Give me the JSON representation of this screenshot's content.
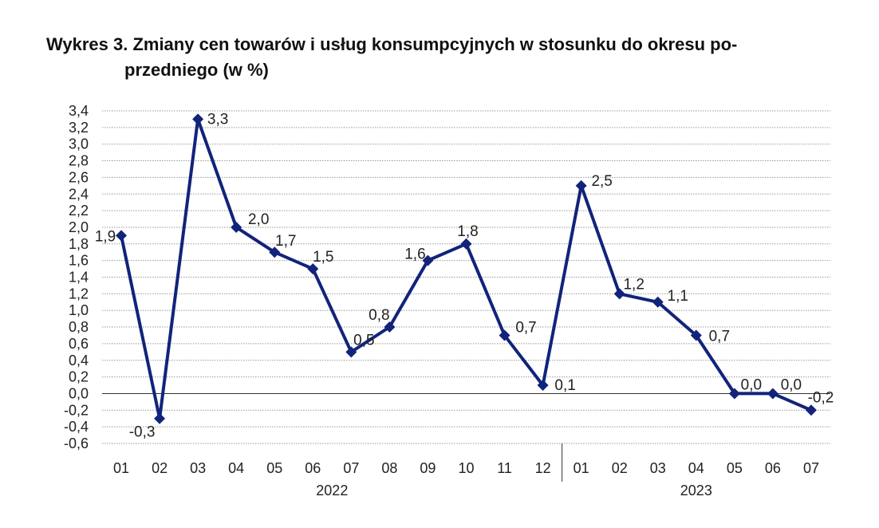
{
  "title": {
    "line1": "Wykres 3. Zmiany cen towarów i usług konsumpcyjnych w stosunku do okresu po-",
    "line2": "przedniego (w %)"
  },
  "chart_data": {
    "type": "line",
    "title": "Wykres 3. Zmiany cen towarów i usług konsumpcyjnych w stosunku do okresu poprzedniego (w %)",
    "categories": [
      "01",
      "02",
      "03",
      "04",
      "05",
      "06",
      "07",
      "08",
      "09",
      "10",
      "11",
      "12",
      "01",
      "02",
      "03",
      "04",
      "05",
      "06",
      "07"
    ],
    "year_groups": [
      {
        "label": "2022",
        "count": 12
      },
      {
        "label": "2023",
        "count": 7
      }
    ],
    "series": [
      {
        "values": [
          1.9,
          -0.3,
          3.3,
          2.0,
          1.7,
          1.5,
          0.5,
          0.8,
          1.6,
          1.8,
          0.7,
          0.1,
          2.5,
          1.2,
          1.1,
          0.7,
          0.0,
          0.0,
          -0.2
        ]
      }
    ],
    "data_labels": [
      "1,9",
      "-0,3",
      "3,3",
      "2,0",
      "1,7",
      "1,5",
      "0,5",
      "0,8",
      "1,6",
      "1,8",
      "0,7",
      "0,1",
      "2,5",
      "1,2",
      "1,1",
      "0,7",
      "0,0",
      "0,0",
      "-0,2"
    ],
    "y_ticks": [
      "3,4",
      "3,2",
      "3,0",
      "2,8",
      "2,6",
      "2,4",
      "2,2",
      "2,0",
      "1,8",
      "1,6",
      "1,4",
      "1,2",
      "1,0",
      "0,8",
      "0,6",
      "0,4",
      "0,2",
      "0,0",
      "-0,2",
      "-0,4",
      "-0,6"
    ],
    "ylim": [
      -0.6,
      3.4
    ],
    "grid": true,
    "colors": {
      "line": "#12237a",
      "grid": "#9a9a9a",
      "axis": "#333333"
    }
  }
}
